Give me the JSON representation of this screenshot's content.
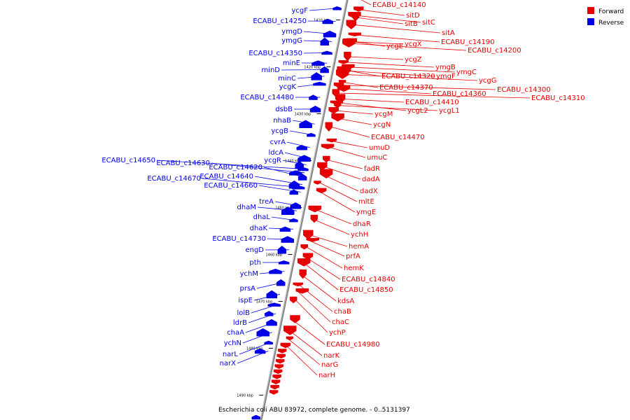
{
  "caption": "Escherichia coli ABU 83972, complete genome. - 0..5131397",
  "legend": [
    {
      "label": "Forward",
      "color": "#e60000"
    },
    {
      "label": "Reverse",
      "color": "#0000e6"
    }
  ],
  "colors": {
    "forward": "#e60000",
    "reverse": "#0000e6",
    "backbone": "#999999"
  },
  "ticks": [
    {
      "label": "1410 kbp",
      "bp": 1410000
    },
    {
      "label": "1420 kbp",
      "bp": 1420000
    },
    {
      "label": "1430 kbp",
      "bp": 1430000
    },
    {
      "label": "1440 kbp",
      "bp": 1440000
    },
    {
      "label": "1450 kbp",
      "bp": 1450000
    },
    {
      "label": "1460 kbp",
      "bp": 1460000
    },
    {
      "label": "1470 kbp",
      "bp": 1470000
    },
    {
      "label": "1480 kbp",
      "bp": 1480000
    },
    {
      "label": "1490 kbp",
      "bp": 1490000
    }
  ],
  "reverse_genes": [
    {
      "name": "ycgF",
      "bp": 1407500
    },
    {
      "name": "ECABU_c14250",
      "bp": 1410300
    },
    {
      "name": "ymgD",
      "bp": 1413000
    },
    {
      "name": "ymgG",
      "bp": 1414600
    },
    {
      "name": "ECABU_c14350",
      "bp": 1417000
    },
    {
      "name": "minE",
      "bp": 1419200
    },
    {
      "name": "minD",
      "bp": 1420600
    },
    {
      "name": "minC",
      "bp": 1422000
    },
    {
      "name": "ycgK",
      "bp": 1423600
    },
    {
      "name": "ECABU_c14480",
      "bp": 1426500
    },
    {
      "name": "dsbB",
      "bp": 1429000
    },
    {
      "name": "nhaB",
      "bp": 1432200
    },
    {
      "name": "ycgB",
      "bp": 1434500
    },
    {
      "name": "cvrA",
      "bp": 1437200
    },
    {
      "name": "ldcA",
      "bp": 1439500
    },
    {
      "name": "ycgR",
      "bp": 1440900
    },
    {
      "name": "ECABU_c14650",
      "bp": 1441800
    },
    {
      "name": "ECABU_c14630",
      "bp": 1442600
    },
    {
      "name": "ECABU_c14620",
      "bp": 1443500
    },
    {
      "name": "ECABU_c14640",
      "bp": 1445100
    },
    {
      "name": "ECABU_c14670",
      "bp": 1445700
    },
    {
      "name": "ECABU_c14660",
      "bp": 1446700
    },
    {
      "name": "treA",
      "bp": 1449600
    },
    {
      "name": "dhaM",
      "bp": 1450700
    },
    {
      "name": "dhaL",
      "bp": 1452700
    },
    {
      "name": "dhaK",
      "bp": 1454600
    },
    {
      "name": "ECABU_c14730",
      "bp": 1456800
    },
    {
      "name": "engD",
      "bp": 1459000
    },
    {
      "name": "pth",
      "bp": 1461700
    },
    {
      "name": "ychM",
      "bp": 1463600
    },
    {
      "name": "prsA",
      "bp": 1466000
    },
    {
      "name": "ispE",
      "bp": 1468500
    },
    {
      "name": "lolB",
      "bp": 1470700
    },
    {
      "name": "ldrB",
      "bp": 1472600
    },
    {
      "name": "chaA",
      "bp": 1474500
    },
    {
      "name": "ychN",
      "bp": 1476600
    },
    {
      "name": "narL",
      "bp": 1478800
    },
    {
      "name": "narX",
      "bp": 1480600
    }
  ],
  "forward_genes": [
    {
      "name": "ECABU_c14140",
      "bp": 1405300
    },
    {
      "name": "sitD",
      "bp": 1407700
    },
    {
      "name": "sitC",
      "bp": 1409000
    },
    {
      "name": "sitB",
      "bp": 1409400
    },
    {
      "name": "sitA",
      "bp": 1411000
    },
    {
      "name": "ECABU_c14190",
      "bp": 1413100
    },
    {
      "name": "ycgE",
      "bp": 1414500
    },
    {
      "name": "ycgX",
      "bp": 1414600
    },
    {
      "name": "ECABU_c14200",
      "bp": 1415000
    },
    {
      "name": "ycgZ",
      "bp": 1417800
    },
    {
      "name": "ymgB",
      "bp": 1419000
    },
    {
      "name": "ymgC",
      "bp": 1420000
    },
    {
      "name": "ECABU_c14320",
      "bp": 1420600
    },
    {
      "name": "ymgF",
      "bp": 1420800
    },
    {
      "name": "ycgG",
      "bp": 1421600
    },
    {
      "name": "ECABU_c14370",
      "bp": 1423200
    },
    {
      "name": "ECABU_c14300",
      "bp": 1423900
    },
    {
      "name": "ECABU_c14360",
      "bp": 1424600
    },
    {
      "name": "ECABU_c14310",
      "bp": 1425600
    },
    {
      "name": "ECABU_c14410",
      "bp": 1426800
    },
    {
      "name": "ycgL2",
      "bp": 1427600
    },
    {
      "name": "ycgL1",
      "bp": 1428200
    },
    {
      "name": "ycgM",
      "bp": 1429300
    },
    {
      "name": "ycgN",
      "bp": 1430800
    },
    {
      "name": "ECABU_c14470",
      "bp": 1432800
    },
    {
      "name": "umuD",
      "bp": 1435700
    },
    {
      "name": "umuC",
      "bp": 1437000
    },
    {
      "name": "fadR",
      "bp": 1439700
    },
    {
      "name": "dadA",
      "bp": 1441200
    },
    {
      "name": "dadX",
      "bp": 1442800
    },
    {
      "name": "mltE",
      "bp": 1444700
    },
    {
      "name": "ymgE",
      "bp": 1446400
    },
    {
      "name": "dhaR",
      "bp": 1450300
    },
    {
      "name": "ychH",
      "bp": 1452400
    },
    {
      "name": "hemA",
      "bp": 1455800
    },
    {
      "name": "prfA",
      "bp": 1456900
    },
    {
      "name": "hemK",
      "bp": 1458400
    },
    {
      "name": "ECABU_c14840",
      "bp": 1460400
    },
    {
      "name": "ECABU_c14850",
      "bp": 1461700
    },
    {
      "name": "kdsA",
      "bp": 1464200
    },
    {
      "name": "chaB",
      "bp": 1466400
    },
    {
      "name": "chaC",
      "bp": 1467800
    },
    {
      "name": "ychP",
      "bp": 1469700
    },
    {
      "name": "ECABU_c14980",
      "bp": 1473800
    },
    {
      "name": "narK",
      "bp": 1476200
    },
    {
      "name": "narG",
      "bp": 1477900
    },
    {
      "name": "narH",
      "bp": 1479400
    }
  ]
}
